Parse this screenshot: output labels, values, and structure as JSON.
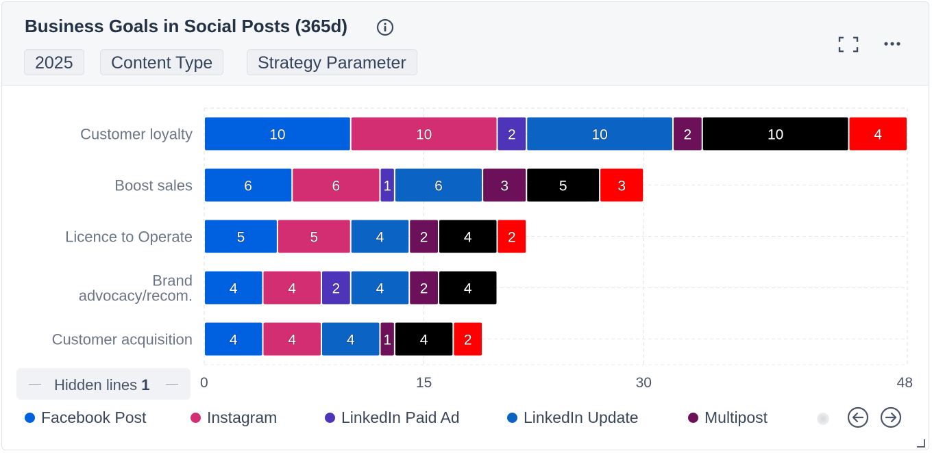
{
  "widget": {
    "title": "Business Goals in Social Posts (365d)",
    "filters": [
      "2025",
      "Content Type",
      "Strategy Parameter"
    ],
    "icons": {
      "info": "info-icon",
      "expand": "expand-icon",
      "more": "more-icon",
      "prev": "arrow-left-icon",
      "next": "arrow-right-icon"
    }
  },
  "hidden_lines": {
    "label": "Hidden lines",
    "count": "1"
  },
  "legend_visible": [
    {
      "name": "Facebook Post",
      "color": "#0061e0"
    },
    {
      "name": "Instagram",
      "color": "#d42e73"
    },
    {
      "name": "LinkedIn Paid Ad",
      "color": "#4d34b8"
    },
    {
      "name": "LinkedIn Update",
      "color": "#0b63c4"
    },
    {
      "name": "Multipost",
      "color": "#6b1059"
    }
  ],
  "chart_data": {
    "type": "bar",
    "orientation": "horizontal",
    "stacked": true,
    "categories": [
      "Customer loyalty",
      "Boost sales",
      "Licence to Operate",
      "Brand advocacy/recom.",
      "Customer acquisition"
    ],
    "series": [
      {
        "name": "Facebook Post",
        "color": "#0061e0",
        "values": [
          10,
          6,
          5,
          4,
          4
        ]
      },
      {
        "name": "Instagram",
        "color": "#d42e73",
        "values": [
          10,
          6,
          5,
          4,
          4
        ]
      },
      {
        "name": "LinkedIn Paid Ad",
        "color": "#4d34b8",
        "values": [
          2,
          1,
          0,
          2,
          0
        ]
      },
      {
        "name": "LinkedIn Update",
        "color": "#0b63c4",
        "values": [
          10,
          6,
          4,
          4,
          4
        ]
      },
      {
        "name": "Multipost",
        "color": "#6b1059",
        "values": [
          2,
          3,
          2,
          2,
          1
        ]
      },
      {
        "name": "",
        "color": "#000000",
        "values": [
          10,
          5,
          4,
          4,
          4
        ]
      },
      {
        "name": "",
        "color": "#ff0000",
        "values": [
          4,
          3,
          2,
          0,
          2
        ]
      }
    ],
    "xlim": [
      0,
      48
    ],
    "xticks": [
      "0",
      "15",
      "30",
      "48"
    ],
    "grid": true
  }
}
